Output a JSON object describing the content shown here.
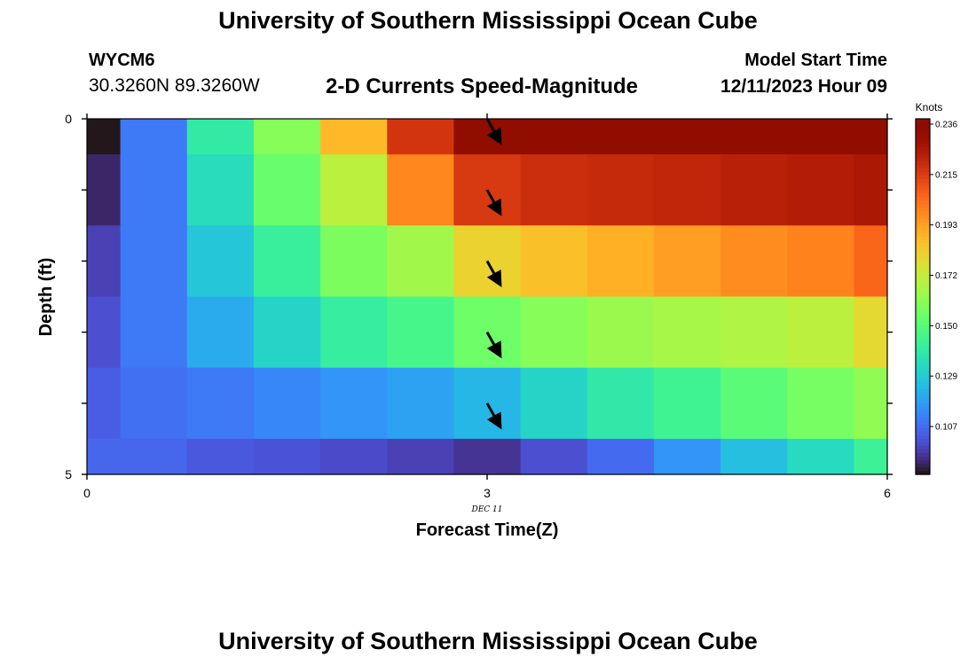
{
  "header": {
    "title": "University of Southern Mississippi Ocean Cube",
    "station_id": "WYCM6",
    "location": "30.3260N  89.3260W",
    "subtitle": "2-D Currents Speed-Magnitude",
    "model_start_label": "Model Start Time",
    "model_start_value": "12/11/2023 Hour 09"
  },
  "footer": {
    "title": "University of Southern Mississippi Ocean Cube"
  },
  "chart_data": {
    "type": "heatmap",
    "xlabel": "Forecast Time(Z)",
    "ylabel": "Depth (ft)",
    "x_tick_labels": [
      "0",
      "3",
      "6"
    ],
    "x_sub_label": "DEC 11",
    "y_tick_labels": [
      "0",
      "5"
    ],
    "xlim": [
      0,
      6
    ],
    "ylim": [
      0,
      5
    ],
    "y_inverted": true,
    "colorbar": {
      "label": "Knots",
      "tick_labels": [
        "0.236",
        "0.215",
        "0.193",
        "0.172",
        "0.150",
        "0.129",
        "0.107"
      ],
      "range": [
        0.086,
        0.236
      ],
      "colormap": "turbo"
    },
    "time_steps": [
      0,
      0.5,
      1,
      1.5,
      2,
      2.5,
      3,
      3.5,
      4,
      4.5,
      5,
      5.5,
      6
    ],
    "depth_levels": [
      0,
      1,
      2,
      3,
      4,
      5
    ],
    "values": [
      [
        0.086,
        0.108,
        0.138,
        0.158,
        0.186,
        0.215,
        0.236,
        0.236,
        0.236,
        0.236,
        0.236,
        0.236,
        0.236
      ],
      [
        0.09,
        0.108,
        0.133,
        0.152,
        0.168,
        0.197,
        0.214,
        0.217,
        0.218,
        0.219,
        0.221,
        0.222,
        0.224
      ],
      [
        0.096,
        0.108,
        0.126,
        0.14,
        0.156,
        0.163,
        0.179,
        0.184,
        0.188,
        0.192,
        0.196,
        0.198,
        0.204
      ],
      [
        0.099,
        0.108,
        0.119,
        0.13,
        0.139,
        0.144,
        0.153,
        0.158,
        0.162,
        0.164,
        0.166,
        0.168,
        0.177
      ],
      [
        0.102,
        0.106,
        0.108,
        0.111,
        0.114,
        0.117,
        0.122,
        0.13,
        0.137,
        0.142,
        0.149,
        0.155,
        0.16
      ],
      [
        0.104,
        0.104,
        0.101,
        0.1,
        0.098,
        0.096,
        0.093,
        0.099,
        0.105,
        0.114,
        0.124,
        0.132,
        0.141
      ]
    ],
    "current_arrows": [
      {
        "time": 3,
        "depth": 0,
        "direction": "southeast"
      },
      {
        "time": 3,
        "depth": 1,
        "direction": "southeast"
      },
      {
        "time": 3,
        "depth": 2,
        "direction": "southeast"
      },
      {
        "time": 3,
        "depth": 3,
        "direction": "southeast"
      },
      {
        "time": 3,
        "depth": 4,
        "direction": "southeast"
      }
    ]
  }
}
